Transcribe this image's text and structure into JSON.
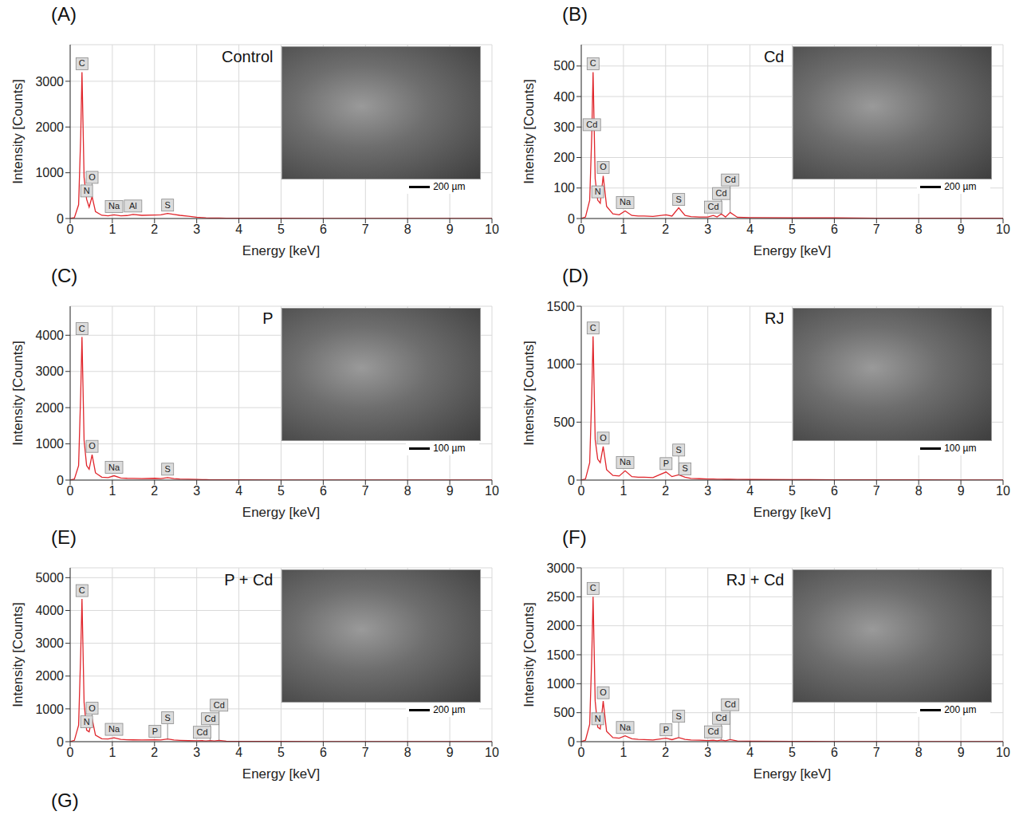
{
  "chart_data": [
    {
      "type": "line",
      "panel": "(A)",
      "title": "Control",
      "x_label": "Energy [keV]",
      "y_label": "Intensity [Counts]",
      "scale_bar": "200 µm",
      "color": "#e0262c",
      "grid": true,
      "xlim": [
        0,
        10
      ],
      "xticks": [
        0,
        1,
        2,
        3,
        4,
        5,
        6,
        7,
        8,
        9,
        10
      ],
      "ylim": [
        0,
        3800
      ],
      "yticks": [
        0,
        1000,
        2000,
        3000
      ],
      "x": [
        0,
        0.1,
        0.2,
        0.25,
        0.28,
        0.33,
        0.39,
        0.45,
        0.52,
        0.6,
        0.75,
        0.9,
        1.04,
        1.2,
        1.35,
        1.49,
        1.7,
        2.01,
        2.15,
        2.31,
        2.46,
        2.6,
        2.8,
        3.0,
        3.13,
        3.22,
        3.32,
        3.42,
        3.53,
        3.7,
        4,
        5,
        6,
        7,
        8,
        9,
        10
      ],
      "values": [
        0,
        20,
        300,
        1800,
        3200,
        900,
        420,
        250,
        480,
        150,
        70,
        60,
        80,
        60,
        65,
        90,
        70,
        75,
        80,
        110,
        90,
        70,
        50,
        30,
        20,
        15,
        12,
        10,
        10,
        8,
        6,
        4,
        3,
        2,
        2,
        1,
        1
      ],
      "annotations": [
        {
          "text": "C",
          "x": 0.28
        },
        {
          "text": "N",
          "x": 0.39
        },
        {
          "text": "O",
          "x": 0.52
        },
        {
          "text": "Na",
          "x": 1.04
        },
        {
          "text": "Al",
          "x": 1.49
        },
        {
          "text": "S",
          "x": 2.31
        }
      ]
    },
    {
      "type": "line",
      "panel": "(B)",
      "title": "Cd",
      "x_label": "Energy [keV]",
      "y_label": "Intensity [Counts]",
      "scale_bar": "200 µm",
      "color": "#e0262c",
      "grid": true,
      "xlim": [
        0,
        10
      ],
      "xticks": [
        0,
        1,
        2,
        3,
        4,
        5,
        6,
        7,
        8,
        9,
        10
      ],
      "ylim": [
        0,
        570
      ],
      "yticks": [
        0,
        100,
        200,
        300,
        400,
        500
      ],
      "x": [
        0,
        0.1,
        0.2,
        0.25,
        0.28,
        0.33,
        0.39,
        0.45,
        0.52,
        0.6,
        0.75,
        0.9,
        1.04,
        1.2,
        1.35,
        1.49,
        1.7,
        2.01,
        2.15,
        2.31,
        2.46,
        2.6,
        2.8,
        3.0,
        3.13,
        3.22,
        3.32,
        3.42,
        3.53,
        3.7,
        4,
        5,
        6,
        7,
        8,
        9,
        10
      ],
      "values": [
        0,
        5,
        60,
        280,
        480,
        130,
        60,
        50,
        140,
        40,
        15,
        12,
        25,
        10,
        8,
        8,
        7,
        12,
        8,
        35,
        10,
        6,
        5,
        5,
        10,
        5,
        15,
        5,
        20,
        4,
        3,
        2,
        2,
        1,
        1,
        1,
        1
      ],
      "annotations": [
        {
          "text": "C",
          "x": 0.28
        },
        {
          "text": "Cd",
          "x": 0.25
        },
        {
          "text": "N",
          "x": 0.39
        },
        {
          "text": "O",
          "x": 0.52
        },
        {
          "text": "Na",
          "x": 1.04
        },
        {
          "text": "S",
          "x": 2.31
        },
        {
          "text": "Cd",
          "x": 3.13
        },
        {
          "text": "Cd",
          "x": 3.32
        },
        {
          "text": "Cd",
          "x": 3.53
        }
      ]
    },
    {
      "type": "line",
      "panel": "(C)",
      "title": "P",
      "x_label": "Energy [keV]",
      "y_label": "Intensity [Counts]",
      "scale_bar": "100 µm",
      "color": "#e0262c",
      "grid": true,
      "xlim": [
        0,
        10
      ],
      "xticks": [
        0,
        1,
        2,
        3,
        4,
        5,
        6,
        7,
        8,
        9,
        10
      ],
      "ylim": [
        0,
        4800
      ],
      "yticks": [
        0,
        1000,
        2000,
        3000,
        4000
      ],
      "x": [
        0,
        0.1,
        0.2,
        0.25,
        0.28,
        0.33,
        0.39,
        0.45,
        0.52,
        0.6,
        0.75,
        0.9,
        1.04,
        1.2,
        1.35,
        1.49,
        1.7,
        2.01,
        2.15,
        2.31,
        2.46,
        2.6,
        2.8,
        3.0,
        3.13,
        3.22,
        3.32,
        3.42,
        3.53,
        3.7,
        4,
        5,
        6,
        7,
        8,
        9,
        10
      ],
      "values": [
        0,
        30,
        400,
        2400,
        3950,
        1100,
        400,
        300,
        700,
        200,
        80,
        70,
        120,
        60,
        50,
        45,
        40,
        50,
        40,
        70,
        40,
        30,
        25,
        20,
        15,
        12,
        10,
        10,
        8,
        7,
        6,
        4,
        3,
        2,
        2,
        1,
        1
      ],
      "annotations": [
        {
          "text": "C",
          "x": 0.28
        },
        {
          "text": "O",
          "x": 0.52
        },
        {
          "text": "Na",
          "x": 1.04
        },
        {
          "text": "S",
          "x": 2.31
        }
      ]
    },
    {
      "type": "line",
      "panel": "(D)",
      "title": "RJ",
      "x_label": "Energy [keV]",
      "y_label": "Intensity [Counts]",
      "scale_bar": "100 µm",
      "color": "#e0262c",
      "grid": true,
      "xlim": [
        0,
        10
      ],
      "xticks": [
        0,
        1,
        2,
        3,
        4,
        5,
        6,
        7,
        8,
        9,
        10
      ],
      "ylim": [
        0,
        1500
      ],
      "yticks": [
        0,
        500,
        1000,
        1500
      ],
      "x": [
        0,
        0.1,
        0.2,
        0.25,
        0.28,
        0.33,
        0.39,
        0.45,
        0.52,
        0.6,
        0.75,
        0.9,
        1.04,
        1.2,
        1.35,
        1.49,
        1.7,
        2.01,
        2.15,
        2.31,
        2.46,
        2.6,
        2.8,
        3.0,
        3.13,
        3.22,
        3.32,
        3.42,
        3.53,
        3.7,
        4,
        5,
        6,
        7,
        8,
        9,
        10
      ],
      "values": [
        0,
        10,
        150,
        750,
        1240,
        350,
        180,
        150,
        290,
        90,
        40,
        35,
        80,
        30,
        25,
        25,
        22,
        70,
        30,
        45,
        25,
        15,
        12,
        10,
        9,
        8,
        8,
        7,
        7,
        6,
        5,
        4,
        3,
        2,
        2,
        1,
        1
      ],
      "annotations": [
        {
          "text": "C",
          "x": 0.28
        },
        {
          "text": "O",
          "x": 0.52
        },
        {
          "text": "Na",
          "x": 1.04
        },
        {
          "text": "P",
          "x": 2.01
        },
        {
          "text": "S",
          "x": 2.31
        },
        {
          "text": "S",
          "x": 2.46
        }
      ]
    },
    {
      "type": "line",
      "panel": "(E)",
      "title": "P + Cd",
      "x_label": "Energy [keV]",
      "y_label": "Intensity [Counts]",
      "scale_bar": "200 µm",
      "color": "#e0262c",
      "grid": true,
      "xlim": [
        0,
        10
      ],
      "xticks": [
        0,
        1,
        2,
        3,
        4,
        5,
        6,
        7,
        8,
        9,
        10
      ],
      "ylim": [
        0,
        5300
      ],
      "yticks": [
        0,
        1000,
        2000,
        3000,
        4000,
        5000
      ],
      "x": [
        0,
        0.1,
        0.2,
        0.25,
        0.28,
        0.33,
        0.39,
        0.45,
        0.52,
        0.6,
        0.75,
        0.9,
        1.04,
        1.2,
        1.35,
        1.49,
        1.7,
        2.01,
        2.15,
        2.31,
        2.46,
        2.6,
        2.8,
        3.0,
        3.13,
        3.22,
        3.32,
        3.42,
        3.53,
        3.7,
        4,
        5,
        6,
        7,
        8,
        9,
        10
      ],
      "values": [
        0,
        40,
        500,
        2700,
        4350,
        1200,
        350,
        300,
        700,
        200,
        90,
        80,
        120,
        70,
        60,
        55,
        50,
        60,
        50,
        80,
        50,
        40,
        30,
        25,
        30,
        20,
        35,
        20,
        40,
        15,
        10,
        6,
        4,
        3,
        2,
        2,
        1
      ],
      "annotations": [
        {
          "text": "C",
          "x": 0.28
        },
        {
          "text": "N",
          "x": 0.39
        },
        {
          "text": "O",
          "x": 0.52
        },
        {
          "text": "Na",
          "x": 1.04
        },
        {
          "text": "P",
          "x": 2.01
        },
        {
          "text": "S",
          "x": 2.31
        },
        {
          "text": "Cd",
          "x": 3.13
        },
        {
          "text": "Cd",
          "x": 3.32
        },
        {
          "text": "Cd",
          "x": 3.53
        }
      ]
    },
    {
      "type": "line",
      "panel": "(F)",
      "title": "RJ + Cd",
      "x_label": "Energy [keV]",
      "y_label": "Intensity [Counts]",
      "scale_bar": "200 µm",
      "color": "#e0262c",
      "grid": true,
      "xlim": [
        0,
        10
      ],
      "xticks": [
        0,
        1,
        2,
        3,
        4,
        5,
        6,
        7,
        8,
        9,
        10
      ],
      "ylim": [
        0,
        3000
      ],
      "yticks": [
        0,
        500,
        1000,
        1500,
        2000,
        2500,
        3000
      ],
      "x": [
        0,
        0.1,
        0.2,
        0.25,
        0.28,
        0.33,
        0.39,
        0.45,
        0.52,
        0.6,
        0.75,
        0.9,
        1.04,
        1.2,
        1.35,
        1.49,
        1.7,
        2.01,
        2.15,
        2.31,
        2.46,
        2.6,
        2.8,
        3.0,
        3.13,
        3.22,
        3.32,
        3.42,
        3.53,
        3.7,
        4,
        5,
        6,
        7,
        8,
        9,
        10
      ],
      "values": [
        0,
        25,
        300,
        1500,
        2500,
        700,
        250,
        220,
        700,
        180,
        70,
        60,
        100,
        50,
        40,
        35,
        30,
        60,
        35,
        70,
        40,
        30,
        25,
        20,
        25,
        15,
        30,
        15,
        35,
        12,
        8,
        5,
        3,
        2,
        2,
        1,
        1
      ],
      "annotations": [
        {
          "text": "C",
          "x": 0.28
        },
        {
          "text": "N",
          "x": 0.39
        },
        {
          "text": "O",
          "x": 0.52
        },
        {
          "text": "Na",
          "x": 1.04
        },
        {
          "text": "P",
          "x": 2.01
        },
        {
          "text": "S",
          "x": 2.31
        },
        {
          "text": "Cd",
          "x": 3.13
        },
        {
          "text": "Cd",
          "x": 3.32
        },
        {
          "text": "Cd",
          "x": 3.53
        }
      ]
    }
  ],
  "empty_panel_label": "(G)"
}
